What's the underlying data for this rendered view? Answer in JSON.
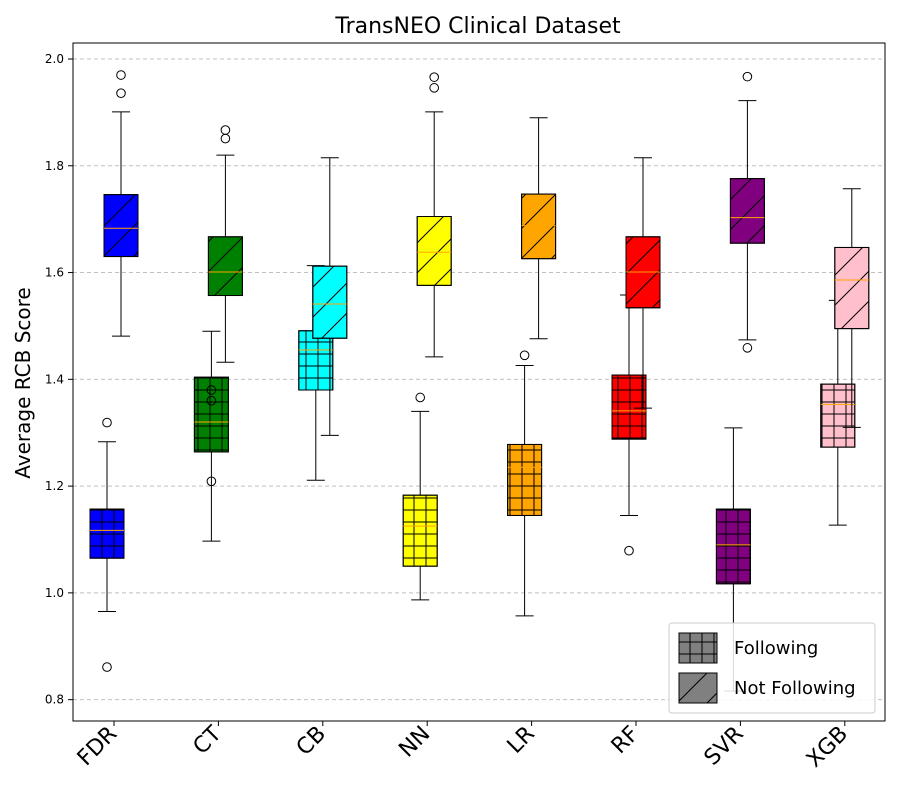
{
  "chart_data": {
    "type": "boxplot",
    "title": "TransNEO Clinical Dataset",
    "xlabel": "",
    "ylabel": "Average RCB Score",
    "ylim": [
      0.76,
      2.03
    ],
    "yticks": [
      "0.8",
      "1.0",
      "1.2",
      "1.4",
      "1.6",
      "1.8",
      "2.0"
    ],
    "grid": "y-dashed",
    "categories": [
      "FDR",
      "CT",
      "CB",
      "NN",
      "LR",
      "RF",
      "SVR",
      "XGB"
    ],
    "colors": [
      "#0000ff",
      "#008000",
      "#00ffff",
      "#ffff00",
      "#ffa500",
      "#ff0000",
      "#800080",
      "#ffc0cb"
    ],
    "median_color": "#ffa500",
    "legend": {
      "position": "lower-right",
      "entries": [
        {
          "label": "Following",
          "hatch": "grid",
          "color": "#808080"
        },
        {
          "label": "Not Following",
          "hatch": "diagonal",
          "color": "#808080"
        }
      ]
    },
    "series": [
      {
        "name": "Following",
        "hatch": "grid",
        "boxes": [
          {
            "category": "FDR",
            "whislo": 0.965,
            "q1": 1.065,
            "med": 1.117,
            "q3": 1.157,
            "whishi": 1.283,
            "fliers": [
              0.861,
              1.319
            ]
          },
          {
            "category": "CT",
            "whislo": 1.097,
            "q1": 1.264,
            "med": 1.32,
            "q3": 1.404,
            "whishi": 1.49,
            "fliers": [
              1.209,
              1.36,
              1.38
            ]
          },
          {
            "category": "CB",
            "whislo": 1.211,
            "q1": 1.38,
            "med": 1.455,
            "q3": 1.491,
            "whishi": 1.613,
            "fliers": []
          },
          {
            "category": "NN",
            "whislo": 0.987,
            "q1": 1.05,
            "med": 1.125,
            "q3": 1.183,
            "whishi": 1.34,
            "fliers": [
              1.366
            ]
          },
          {
            "category": "LR",
            "whislo": 0.957,
            "q1": 1.145,
            "med": 1.235,
            "q3": 1.278,
            "whishi": 1.426,
            "fliers": [
              1.445
            ]
          },
          {
            "category": "RF",
            "whislo": 1.145,
            "q1": 1.288,
            "med": 1.341,
            "q3": 1.408,
            "whishi": 1.558,
            "fliers": [
              1.079
            ]
          },
          {
            "category": "SVR",
            "whislo": 0.816,
            "q1": 1.017,
            "med": 1.09,
            "q3": 1.157,
            "whishi": 1.309,
            "fliers": []
          },
          {
            "category": "XGB",
            "whislo": 1.127,
            "q1": 1.273,
            "med": 1.353,
            "q3": 1.391,
            "whishi": 1.548,
            "fliers": []
          }
        ]
      },
      {
        "name": "Not Following",
        "hatch": "diagonal",
        "boxes": [
          {
            "category": "FDR",
            "whislo": 1.481,
            "q1": 1.63,
            "med": 1.683,
            "q3": 1.746,
            "whishi": 1.901,
            "fliers": [
              1.936,
              1.97
            ]
          },
          {
            "category": "CT",
            "whislo": 1.432,
            "q1": 1.557,
            "med": 1.601,
            "q3": 1.667,
            "whishi": 1.82,
            "fliers": [
              1.851,
              1.867
            ]
          },
          {
            "category": "CB",
            "whislo": 1.295,
            "q1": 1.477,
            "med": 1.541,
            "q3": 1.612,
            "whishi": 1.815,
            "fliers": []
          },
          {
            "category": "NN",
            "whislo": 1.442,
            "q1": 1.576,
            "med": 1.638,
            "q3": 1.705,
            "whishi": 1.901,
            "fliers": [
              1.946,
              1.966
            ]
          },
          {
            "category": "LR",
            "whislo": 1.476,
            "q1": 1.626,
            "med": 1.688,
            "q3": 1.747,
            "whishi": 1.89,
            "fliers": []
          },
          {
            "category": "RF",
            "whislo": 1.346,
            "q1": 1.534,
            "med": 1.601,
            "q3": 1.667,
            "whishi": 1.815,
            "fliers": []
          },
          {
            "category": "SVR",
            "whislo": 1.474,
            "q1": 1.655,
            "med": 1.703,
            "q3": 1.776,
            "whishi": 1.922,
            "fliers": [
              1.459,
              1.967
            ]
          },
          {
            "category": "XGB",
            "whislo": 1.31,
            "q1": 1.495,
            "med": 1.586,
            "q3": 1.647,
            "whishi": 1.757,
            "fliers": []
          }
        ]
      }
    ]
  }
}
